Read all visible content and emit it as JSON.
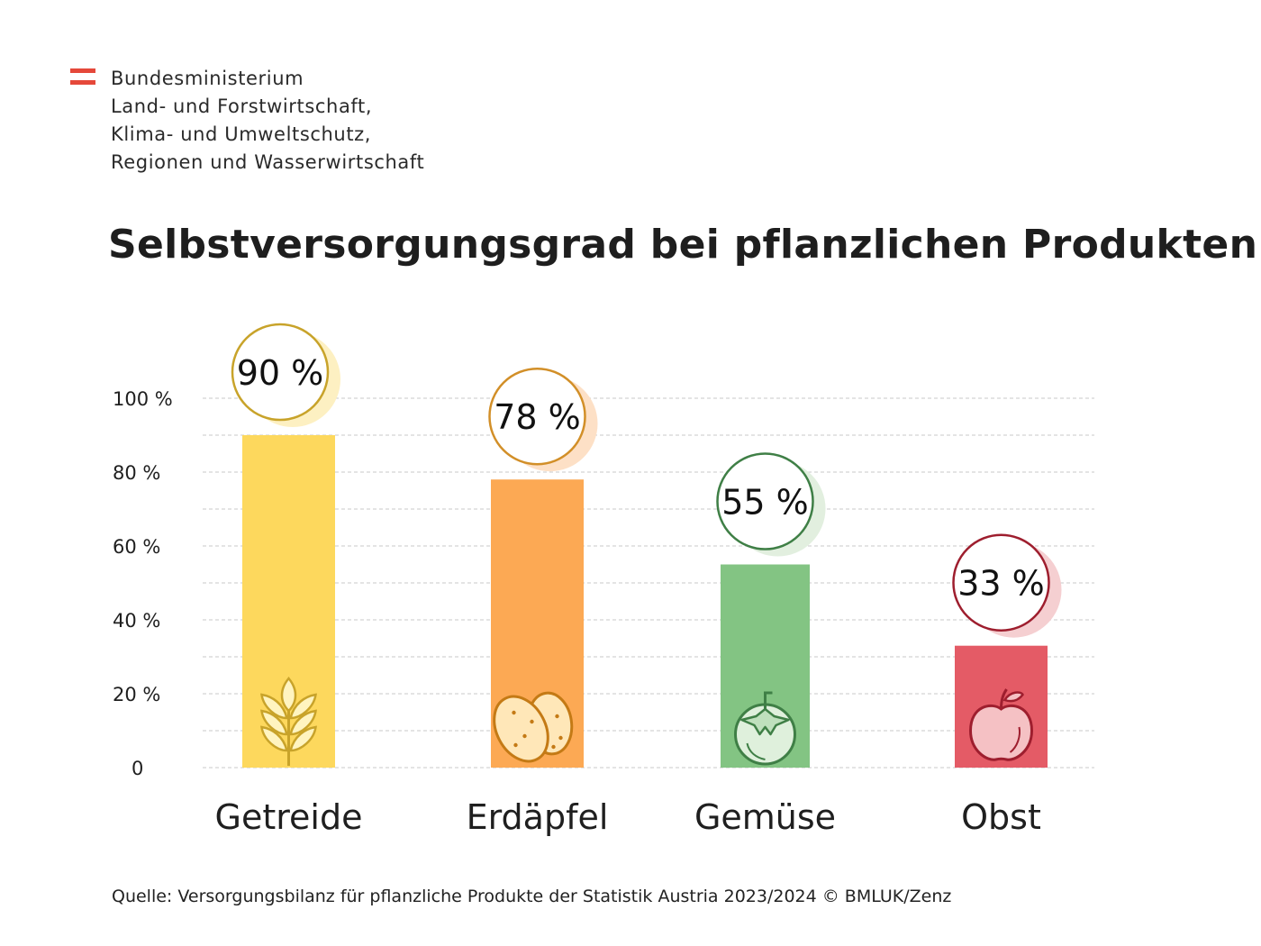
{
  "header": {
    "ministry_lines": [
      "Bundesministerium",
      "Land- und Forstwirtschaft,",
      "Klima- und Umweltschutz,",
      "Regionen und Wasserwirtschaft"
    ]
  },
  "colors": {
    "logo_red": "#e5483a",
    "gridline": "#c8c8c8",
    "text": "#1f1f1f"
  },
  "chart_data": {
    "type": "bar",
    "title": "Selbstversorgungsgrad bei pflanzlichen Produkten",
    "categories": [
      "Getreide",
      "Erdäpfel",
      "Gemüse",
      "Obst"
    ],
    "values": [
      90,
      78,
      55,
      33
    ],
    "value_labels": [
      "90 %",
      "78 %",
      "55 %",
      "33 %"
    ],
    "unit": "%",
    "ylim": [
      0,
      100
    ],
    "yticks": [
      0,
      20,
      40,
      60,
      80,
      100
    ],
    "ytick_labels": [
      "0",
      "20 %",
      "40 %",
      "60 %",
      "80 %",
      "100 %"
    ],
    "grid": true,
    "bar_colors": [
      "#fdd85d",
      "#fca954",
      "#83c483",
      "#e45b66"
    ],
    "badge_colors": [
      "#c8a32a",
      "#d28f28",
      "#3f7f46",
      "#9e1e2e"
    ],
    "shadow_colors": [
      "#fdf0c2",
      "#fde0c6",
      "#e2efdf",
      "#f5cfd1"
    ],
    "icons": [
      "wheat-icon",
      "potato-icon",
      "tomato-icon",
      "apple-icon"
    ]
  },
  "source": "Quelle: Versorgungsbilanz für pflanzliche Produkte der Statistik Austria 2023/2024  © BMLUK/Zenz"
}
